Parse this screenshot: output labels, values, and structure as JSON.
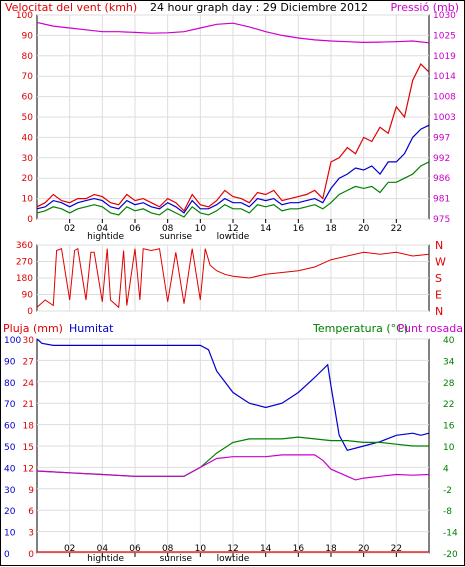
{
  "chart_data": [
    {
      "type": "line",
      "title": "24 hour graph day : 29 Diciembre 2012",
      "ylabel_left": "Velocitat del vent (kmh)",
      "ylabel_right": "Pressió (mb)",
      "yticks_left": [
        "0",
        "10",
        "20",
        "30",
        "40",
        "50",
        "60",
        "70",
        "80",
        "90",
        "100"
      ],
      "yticks_right": [
        "975",
        "981",
        "986",
        "992",
        "997",
        "1003",
        "1008",
        "1014",
        "1019",
        "1025",
        "1030"
      ],
      "ylim_left": [
        0,
        100
      ],
      "ylim_right": [
        975,
        1030
      ],
      "xticks": [
        "02",
        "04",
        "06",
        "08",
        "10",
        "12",
        "14",
        "16",
        "18",
        "20",
        "22"
      ],
      "x_sublabels": [
        "hightide",
        "sunrise",
        "lowtide"
      ],
      "xlim": [
        0,
        24
      ],
      "series": [
        {
          "axis": "left",
          "color": "#e00000",
          "x": [
            0,
            0.5,
            1,
            1.5,
            2,
            2.5,
            3,
            3.5,
            4,
            4.5,
            5,
            5.5,
            6,
            6.5,
            7,
            7.5,
            8,
            8.5,
            9,
            9.5,
            10,
            10.5,
            11,
            11.5,
            12,
            12.5,
            13,
            13.5,
            14,
            14.5,
            15,
            15.5,
            16,
            16.5,
            17,
            17.5,
            18,
            18.5,
            19,
            19.5,
            20,
            20.5,
            21,
            21.5,
            22,
            22.5,
            23,
            23.5,
            24
          ],
          "values": [
            6,
            8,
            12,
            9,
            8,
            10,
            10,
            12,
            11,
            8,
            7,
            12,
            9,
            10,
            8,
            6,
            10,
            8,
            4,
            12,
            7,
            6,
            9,
            14,
            11,
            10,
            8,
            13,
            12,
            14,
            9,
            10,
            11,
            12,
            14,
            10,
            28,
            30,
            35,
            32,
            40,
            38,
            45,
            42,
            55,
            50,
            68,
            76,
            72
          ]
        },
        {
          "axis": "left",
          "color": "#0000cc",
          "x": [
            0,
            0.5,
            1,
            1.5,
            2,
            2.5,
            3,
            3.5,
            4,
            4.5,
            5,
            5.5,
            6,
            6.5,
            7,
            7.5,
            8,
            8.5,
            9,
            9.5,
            10,
            10.5,
            11,
            11.5,
            12,
            12.5,
            13,
            13.5,
            14,
            14.5,
            15,
            15.5,
            16,
            16.5,
            17,
            17.5,
            18,
            18.5,
            19,
            19.5,
            20,
            20.5,
            21,
            21.5,
            22,
            22.5,
            23,
            23.5,
            24
          ],
          "values": [
            5,
            6,
            9,
            8,
            6,
            8,
            9,
            10,
            9,
            6,
            5,
            9,
            7,
            8,
            6,
            5,
            8,
            6,
            3,
            9,
            5,
            5,
            7,
            10,
            8,
            8,
            6,
            10,
            9,
            10,
            7,
            8,
            8,
            9,
            10,
            8,
            15,
            20,
            22,
            25,
            24,
            26,
            22,
            28,
            28,
            32,
            40,
            44,
            46
          ]
        },
        {
          "axis": "left",
          "color": "#008000",
          "x": [
            0,
            0.5,
            1,
            1.5,
            2,
            2.5,
            3,
            3.5,
            4,
            4.5,
            5,
            5.5,
            6,
            6.5,
            7,
            7.5,
            8,
            8.5,
            9,
            9.5,
            10,
            10.5,
            11,
            11.5,
            12,
            12.5,
            13,
            13.5,
            14,
            14.5,
            15,
            15.5,
            16,
            16.5,
            17,
            17.5,
            18,
            18.5,
            19,
            19.5,
            20,
            20.5,
            21,
            21.5,
            22,
            22.5,
            23,
            23.5,
            24
          ],
          "values": [
            3,
            4,
            6,
            5,
            3,
            5,
            6,
            7,
            6,
            3,
            2,
            6,
            4,
            5,
            3,
            2,
            5,
            3,
            1,
            6,
            3,
            2,
            4,
            7,
            5,
            5,
            3,
            7,
            6,
            7,
            4,
            5,
            5,
            6,
            7,
            5,
            8,
            12,
            14,
            16,
            15,
            16,
            13,
            18,
            18,
            20,
            22,
            26,
            28
          ]
        },
        {
          "axis": "right",
          "color": "#cc00cc",
          "x": [
            0,
            1,
            2,
            3,
            4,
            5,
            6,
            7,
            8,
            9,
            10,
            11,
            12,
            13,
            14,
            15,
            16,
            17,
            18,
            19,
            20,
            21,
            22,
            23,
            24
          ],
          "values": [
            1028,
            1027,
            1026.5,
            1026,
            1025.5,
            1025.5,
            1025.3,
            1025.1,
            1025.2,
            1025.5,
            1026.5,
            1027.5,
            1027.8,
            1026.8,
            1025.5,
            1024.5,
            1023.8,
            1023.3,
            1023,
            1022.8,
            1022.6,
            1022.7,
            1022.8,
            1023,
            1022.5
          ]
        }
      ]
    },
    {
      "type": "line",
      "ylabel_left": "",
      "yticks_left": [
        "360",
        "270",
        "180",
        "90",
        "0"
      ],
      "yticks_right": [
        "N",
        "W",
        "S",
        "E",
        "N"
      ],
      "ylim": [
        0,
        360
      ],
      "xlim": [
        0,
        24
      ],
      "series": [
        {
          "color": "#e00000",
          "x": [
            0,
            0.5,
            1,
            1.2,
            1.5,
            2,
            2.3,
            2.5,
            3,
            3.3,
            3.5,
            4,
            4.3,
            4.5,
            5,
            5.3,
            5.5,
            6,
            6.3,
            6.5,
            7,
            7.5,
            8,
            8.5,
            9,
            9.5,
            10,
            10.3,
            10.6,
            11,
            11.5,
            12,
            13,
            14,
            15,
            16,
            17,
            18,
            19,
            20,
            21,
            22,
            23,
            24
          ],
          "values": [
            20,
            60,
            30,
            330,
            340,
            60,
            330,
            340,
            60,
            320,
            320,
            50,
            340,
            60,
            20,
            330,
            30,
            340,
            60,
            340,
            330,
            340,
            50,
            320,
            40,
            340,
            60,
            340,
            250,
            220,
            200,
            190,
            180,
            200,
            210,
            220,
            240,
            280,
            300,
            320,
            310,
            320,
            300,
            310
          ]
        }
      ]
    },
    {
      "type": "line",
      "ylabel_left": "Pluja (mm)",
      "ylabel_left2": "Humitat",
      "ylabel_right": "Temperatura (°C)",
      "ylabel_right2": "Punt rosada",
      "yticks_left": [
        "0",
        "0",
        "3",
        "6",
        "9",
        "12",
        "15",
        "18",
        "21",
        "24",
        "27",
        "30"
      ],
      "yticks_left2": [
        "0",
        "10",
        "20",
        "30",
        "40",
        "50",
        "60",
        "70",
        "80",
        "90",
        "100"
      ],
      "yticks_right": [
        "40",
        "34",
        "28",
        "22",
        "16",
        "10",
        "4",
        "-2",
        "-8",
        "-14",
        "-20"
      ],
      "ylim_humidity": [
        0,
        100
      ],
      "ylim_temp": [
        -20,
        40
      ],
      "xticks": [
        "02",
        "04",
        "06",
        "08",
        "10",
        "12",
        "14",
        "16",
        "18",
        "20",
        "22"
      ],
      "x_sublabels": [
        "hightide",
        "sunrise",
        "lowtide"
      ],
      "xlim": [
        0,
        24
      ],
      "series": [
        {
          "axis": "humidity",
          "name": "Humitat",
          "color": "#0000cc",
          "x": [
            0,
            0.3,
            1,
            2,
            4,
            6,
            8,
            10,
            10.5,
            11,
            12,
            13,
            14,
            15,
            16,
            17,
            17.8,
            18,
            18.5,
            19,
            20,
            21,
            22,
            23,
            23.5,
            24
          ],
          "values": [
            100,
            98,
            97,
            97,
            97,
            97,
            97,
            97,
            95,
            85,
            75,
            70,
            68,
            70,
            75,
            82,
            88,
            78,
            55,
            48,
            50,
            52,
            55,
            56,
            55,
            56
          ]
        },
        {
          "axis": "temp",
          "name": "Temperatura",
          "color": "#008000",
          "x": [
            0,
            2,
            4,
            6,
            8,
            9,
            10,
            11,
            12,
            13,
            14,
            15,
            16,
            17,
            18,
            19,
            20,
            21,
            22,
            23,
            24
          ],
          "values": [
            3,
            2.5,
            2,
            1.5,
            1.5,
            1.5,
            4,
            8,
            11,
            12,
            12,
            12,
            12.5,
            12,
            11.5,
            11.5,
            11,
            11,
            10.5,
            10,
            10
          ]
        },
        {
          "axis": "temp",
          "name": "Punt rosada",
          "color": "#cc00cc",
          "x": [
            0,
            2,
            4,
            6,
            8,
            9,
            10,
            11,
            12,
            13,
            14,
            15,
            16,
            17,
            17.5,
            18,
            19,
            19.5,
            20,
            21,
            22,
            23,
            24
          ],
          "values": [
            3,
            2.5,
            2,
            1.5,
            1.5,
            1.5,
            4,
            6.5,
            7,
            7,
            7,
            7.5,
            7.5,
            7.5,
            6,
            3.5,
            1.5,
            0.5,
            1,
            1.5,
            2,
            1.8,
            2
          ]
        },
        {
          "axis": "rain",
          "name": "Pluja",
          "color": "#e00000",
          "x": [
            0,
            24
          ],
          "values": [
            0,
            0
          ]
        }
      ]
    }
  ]
}
